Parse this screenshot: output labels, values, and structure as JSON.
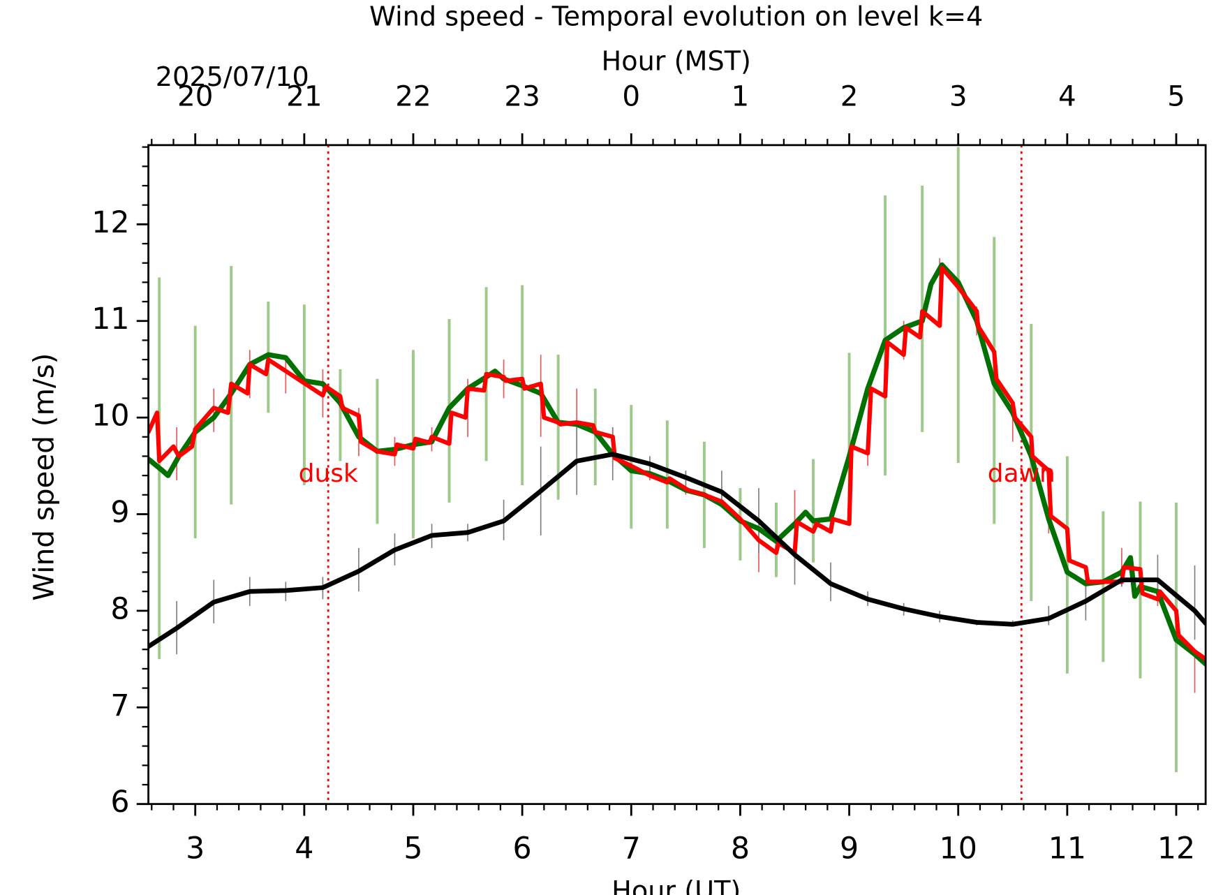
{
  "chart_data": {
    "type": "line",
    "title": "Wind speed - Temporal evolution on level k=4",
    "xlabel": "Hour (UT)",
    "x2label": "Hour (MST)",
    "ylabel": "Wind speed (m/s)",
    "date_label": "2025/07/10",
    "xlim": [
      2.57,
      12.27
    ],
    "ylim": [
      6,
      12.82
    ],
    "xticks": [
      3,
      4,
      5,
      6,
      7,
      8,
      9,
      10,
      11,
      12
    ],
    "x2ticks": [
      {
        "value": 3,
        "label": "20"
      },
      {
        "value": 4,
        "label": "21"
      },
      {
        "value": 5,
        "label": "22"
      },
      {
        "value": 6,
        "label": "23"
      },
      {
        "value": 7,
        "label": "0"
      },
      {
        "value": 8,
        "label": "1"
      },
      {
        "value": 9,
        "label": "2"
      },
      {
        "value": 10,
        "label": "3"
      },
      {
        "value": 11,
        "label": "4"
      },
      {
        "value": 12,
        "label": "5"
      }
    ],
    "yticks": [
      6,
      7,
      8,
      9,
      10,
      11,
      12
    ],
    "vlines": [
      {
        "x": 4.22,
        "label": "dusk",
        "color": "#ff0000"
      },
      {
        "x": 10.58,
        "label": "dawn",
        "color": "#ff0000"
      }
    ],
    "errorbars": [
      {
        "color": "#9dc98a",
        "width": 3.5,
        "x": [
          2.67,
          3,
          3.33,
          3.67,
          4,
          4.33,
          4.67,
          5,
          5.33,
          5.67,
          6,
          6.33,
          6.67,
          7,
          7.33,
          7.67,
          8,
          8.33,
          8.67,
          9,
          9.33,
          9.67,
          10,
          10.33,
          10.67,
          11,
          11.33,
          11.67,
          12
        ],
        "low": [
          7.5,
          8.75,
          9.1,
          10.05,
          9.3,
          9.55,
          8.9,
          8.75,
          9.12,
          9.55,
          9.3,
          9.15,
          9.3,
          8.85,
          8.85,
          8.65,
          8.52,
          8.35,
          8.5,
          8.95,
          9.4,
          9.85,
          9.53,
          8.9,
          8.1,
          7.35,
          7.47,
          7.3,
          6.33
        ],
        "high": [
          11.45,
          10.95,
          11.57,
          11.2,
          11.17,
          10.5,
          10.4,
          10.7,
          11.02,
          11.35,
          11.37,
          10.65,
          10.3,
          10.13,
          9.97,
          9.75,
          9.27,
          9.12,
          9.57,
          10.67,
          12.3,
          12.4,
          12.8,
          11.87,
          10.97,
          9.6,
          9.03,
          9.13,
          9.12
        ]
      },
      {
        "color": "#e85a5a",
        "width": 1.5,
        "x": [
          2.83,
          3.17,
          3.5,
          3.83,
          4.17,
          4.5,
          4.83,
          5.17,
          5.5,
          5.83,
          6.17,
          6.5,
          6.83,
          7.17,
          7.5,
          7.83,
          8.17,
          8.5,
          8.83,
          9.17,
          9.5,
          9.83,
          10.17,
          10.5,
          10.83,
          11.17,
          11.5,
          11.83,
          12.17
        ],
        "low": [
          9.35,
          9.85,
          10.2,
          10.25,
          10.0,
          9.6,
          9.5,
          9.65,
          9.8,
          10.2,
          9.8,
          9.6,
          9.5,
          9.35,
          9.2,
          9.1,
          8.4,
          8.45,
          8.8,
          9.5,
          10.6,
          11.3,
          10.85,
          9.75,
          8.8,
          8.15,
          8.25,
          8.05,
          7.15
        ],
        "high": [
          9.9,
          10.3,
          10.7,
          10.6,
          10.5,
          10.1,
          9.8,
          9.9,
          10.4,
          10.6,
          10.65,
          10.3,
          9.9,
          9.6,
          9.45,
          9.3,
          8.85,
          9.25,
          9.0,
          9.8,
          11.0,
          11.65,
          11.15,
          10.1,
          9.05,
          8.4,
          8.65,
          8.35,
          7.6
        ]
      },
      {
        "color": "#808080",
        "width": 1.5,
        "x": [
          2.83,
          3.17,
          3.5,
          3.83,
          4.17,
          4.5,
          4.83,
          5.17,
          5.5,
          5.83,
          6.17,
          6.5,
          6.83,
          7.17,
          7.5,
          7.83,
          8.17,
          8.5,
          8.83,
          9.17,
          9.5,
          9.83,
          10.17,
          10.5,
          10.83,
          11.17,
          11.5,
          11.83,
          12.17
        ],
        "low": [
          7.55,
          7.87,
          8.05,
          8.1,
          8.12,
          8.2,
          8.47,
          8.65,
          8.72,
          8.73,
          8.78,
          9.2,
          9.35,
          9.4,
          9.3,
          9.1,
          8.6,
          8.27,
          8.1,
          8.05,
          7.95,
          7.88,
          7.85,
          7.85,
          7.85,
          7.9,
          8.25,
          8.15,
          7.7
        ],
        "high": [
          8.1,
          8.32,
          8.35,
          8.3,
          8.35,
          8.65,
          8.8,
          8.9,
          8.9,
          9.15,
          9.7,
          9.9,
          9.9,
          9.6,
          9.45,
          9.45,
          9.27,
          8.9,
          8.5,
          8.2,
          8.08,
          8.0,
          7.9,
          7.9,
          8.05,
          8.35,
          8.42,
          8.58,
          8.47
        ]
      }
    ],
    "series": [
      {
        "color": "#007000",
        "width": 6.5,
        "x": [
          2.57,
          2.7,
          2.75,
          2.85,
          3.0,
          3.17,
          3.33,
          3.5,
          3.67,
          3.83,
          4.0,
          4.17,
          4.33,
          4.5,
          4.67,
          4.83,
          5.0,
          5.17,
          5.33,
          5.5,
          5.67,
          5.75,
          5.83,
          6.0,
          6.17,
          6.33,
          6.5,
          6.67,
          6.83,
          7.0,
          7.17,
          7.33,
          7.5,
          7.67,
          7.83,
          8.0,
          8.17,
          8.33,
          8.5,
          8.6,
          8.67,
          8.83,
          9.0,
          9.17,
          9.33,
          9.5,
          9.67,
          9.75,
          9.85,
          10.0,
          10.17,
          10.33,
          10.5,
          10.67,
          10.83,
          11.0,
          11.17,
          11.33,
          11.5,
          11.58,
          11.62,
          11.67,
          11.83,
          12.0,
          12.17,
          12.27
        ],
        "values": [
          9.57,
          9.45,
          9.4,
          9.6,
          9.85,
          10.0,
          10.25,
          10.55,
          10.65,
          10.62,
          10.38,
          10.35,
          10.15,
          9.8,
          9.65,
          9.67,
          9.72,
          9.75,
          10.1,
          10.3,
          10.42,
          10.48,
          10.4,
          10.33,
          10.25,
          9.95,
          9.93,
          9.85,
          9.62,
          9.45,
          9.42,
          9.35,
          9.25,
          9.2,
          9.1,
          8.93,
          8.85,
          8.72,
          8.9,
          9.02,
          8.93,
          8.95,
          9.6,
          10.3,
          10.8,
          10.93,
          11.0,
          11.38,
          11.58,
          11.4,
          11.0,
          10.35,
          10.05,
          9.6,
          8.95,
          8.4,
          8.28,
          8.3,
          8.4,
          8.55,
          8.15,
          8.25,
          8.2,
          7.7,
          7.55,
          7.45
        ]
      },
      {
        "color": "#ff0000",
        "width": 5.5,
        "x": [
          2.57,
          2.65,
          2.67,
          2.8,
          2.85,
          2.97,
          3.0,
          3.17,
          3.3,
          3.33,
          3.48,
          3.5,
          3.65,
          3.67,
          4.17,
          4.2,
          4.33,
          4.35,
          4.5,
          4.52,
          4.67,
          4.83,
          4.85,
          5.0,
          5.02,
          5.15,
          5.17,
          5.33,
          5.35,
          5.48,
          5.5,
          5.65,
          5.67,
          5.83,
          5.85,
          6.0,
          6.02,
          6.17,
          6.2,
          6.33,
          6.35,
          6.5,
          6.65,
          6.67,
          6.83,
          6.85,
          7.0,
          7.17,
          7.33,
          7.35,
          7.52,
          7.67,
          7.83,
          8.0,
          8.17,
          8.33,
          8.35,
          8.5,
          8.52,
          8.67,
          8.7,
          8.83,
          8.85,
          9.0,
          9.02,
          9.17,
          9.2,
          9.33,
          9.35,
          9.5,
          9.52,
          9.65,
          9.67,
          9.83,
          9.85,
          10.0,
          10.17,
          10.18,
          10.33,
          10.35,
          10.5,
          10.52,
          10.67,
          10.68,
          10.83,
          10.85,
          11.0,
          11.02,
          11.17,
          11.19,
          11.33,
          11.5,
          11.52,
          11.67,
          11.69,
          11.83,
          11.85,
          12.0,
          12.02,
          12.17,
          12.27
        ],
        "values": [
          9.85,
          10.05,
          9.55,
          9.7,
          9.6,
          9.7,
          9.88,
          10.1,
          10.05,
          10.35,
          10.25,
          10.55,
          10.45,
          10.6,
          10.23,
          10.32,
          10.22,
          10.1,
          10.02,
          9.75,
          9.65,
          9.62,
          9.72,
          9.68,
          9.78,
          9.74,
          9.8,
          9.73,
          10.05,
          10.0,
          10.3,
          10.28,
          10.45,
          10.42,
          10.38,
          10.4,
          10.3,
          10.35,
          10.0,
          9.95,
          9.93,
          9.95,
          9.92,
          9.85,
          9.8,
          9.58,
          9.5,
          9.4,
          9.33,
          9.37,
          9.25,
          9.2,
          9.13,
          8.95,
          8.73,
          8.6,
          8.7,
          8.6,
          8.92,
          8.82,
          8.9,
          8.82,
          8.95,
          8.9,
          9.7,
          9.63,
          10.3,
          10.22,
          10.78,
          10.65,
          10.93,
          10.83,
          11.1,
          10.95,
          11.55,
          11.35,
          11.1,
          10.95,
          10.68,
          10.4,
          10.15,
          10.0,
          9.8,
          9.6,
          9.45,
          8.98,
          8.85,
          8.52,
          8.45,
          8.3,
          8.3,
          8.3,
          8.45,
          8.43,
          8.18,
          8.12,
          8.2,
          8.0,
          7.75,
          7.58,
          7.5
        ]
      },
      {
        "color": "#000000",
        "width": 6,
        "x": [
          2.57,
          2.83,
          3.17,
          3.5,
          3.83,
          4.17,
          4.5,
          4.83,
          5.17,
          5.5,
          5.83,
          6.17,
          6.5,
          6.83,
          7.17,
          7.5,
          7.83,
          8.17,
          8.5,
          8.83,
          9.17,
          9.5,
          9.83,
          10.17,
          10.5,
          10.83,
          11.17,
          11.5,
          11.83,
          12.17,
          12.27
        ],
        "values": [
          7.63,
          7.82,
          8.09,
          8.2,
          8.21,
          8.24,
          8.41,
          8.63,
          8.78,
          8.81,
          8.93,
          9.24,
          9.55,
          9.62,
          9.52,
          9.38,
          9.23,
          8.93,
          8.58,
          8.28,
          8.12,
          8.02,
          7.94,
          7.88,
          7.86,
          7.92,
          8.1,
          8.32,
          8.32,
          8.0,
          7.87
        ]
      }
    ]
  }
}
